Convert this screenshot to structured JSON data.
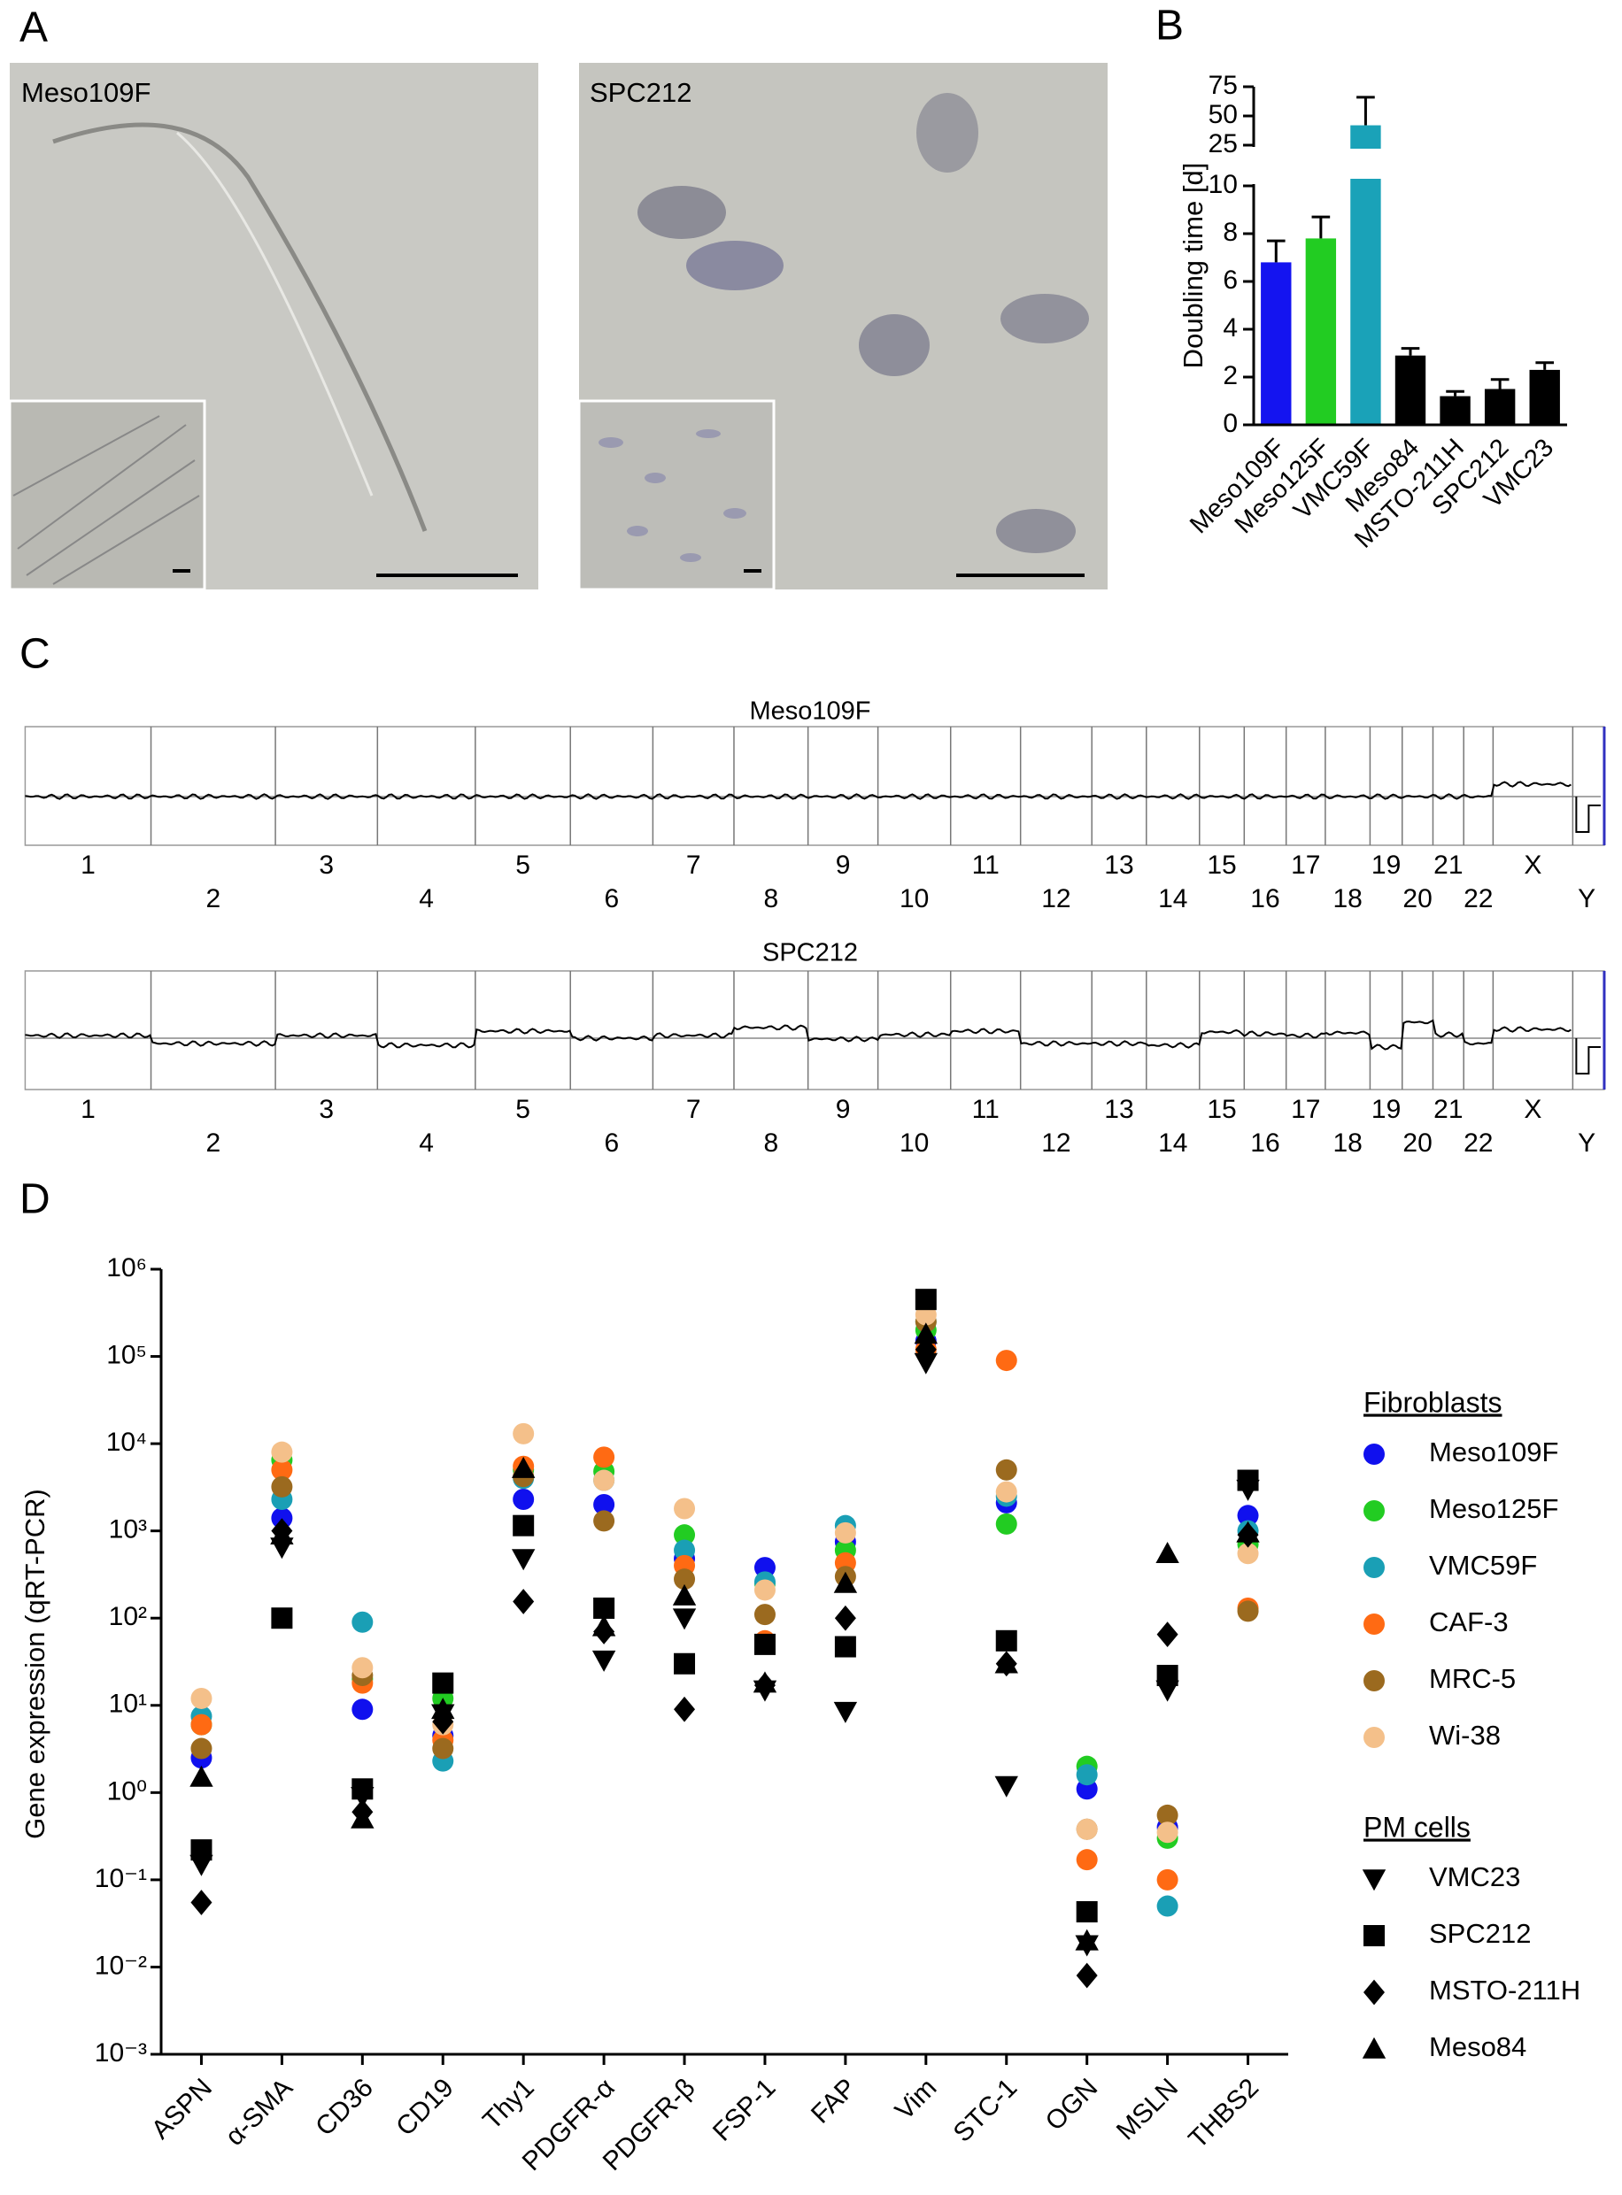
{
  "panel_labels": [
    "A",
    "B",
    "C",
    "D"
  ],
  "images": [
    {
      "label": "Meso109F"
    },
    {
      "label": "SPC212"
    }
  ],
  "chart_data": [
    {
      "type": "bar",
      "ylabel": "Doubling time [d]",
      "categories": [
        "Meso109F",
        "Meso125F",
        "VMC59F",
        "Meso84",
        "MSTO-211H",
        "SPC212",
        "VMC23"
      ],
      "values": [
        6.8,
        7.8,
        42,
        2.9,
        1.2,
        1.5,
        2.3
      ],
      "errors": [
        0.9,
        0.9,
        24,
        0.3,
        0.2,
        0.4,
        0.3
      ],
      "colors": [
        "#1414f0",
        "#22cc22",
        "#1aa2b8",
        "#000000",
        "#000000",
        "#000000",
        "#000000"
      ],
      "ylim": [
        0,
        75
      ],
      "ybreak": [
        10,
        25
      ],
      "yticks": [
        0,
        2,
        4,
        6,
        8,
        10,
        25,
        50,
        75
      ]
    },
    {
      "type": "cnv",
      "title": "Meso109F",
      "categories": [
        "1",
        "2",
        "3",
        "4",
        "5",
        "6",
        "7",
        "8",
        "9",
        "10",
        "11",
        "12",
        "13",
        "14",
        "15",
        "16",
        "17",
        "18",
        "19",
        "20",
        "21",
        "22",
        "X",
        "Y"
      ]
    },
    {
      "type": "cnv",
      "title": "SPC212",
      "categories": [
        "1",
        "2",
        "3",
        "4",
        "5",
        "6",
        "7",
        "8",
        "9",
        "10",
        "11",
        "12",
        "13",
        "14",
        "15",
        "16",
        "17",
        "18",
        "19",
        "20",
        "21",
        "22",
        "X",
        "Y"
      ]
    },
    {
      "type": "scatter",
      "ylabel": "Gene expression (qRT-PCR)",
      "log_y": true,
      "categories": [
        "ASPN",
        "α-SMA",
        "CD36",
        "CD19",
        "Thy1",
        "PDGFR-α",
        "PDGFR-β",
        "FSP-1",
        "FAP",
        "Vim",
        "STC-1",
        "OGN",
        "MSLN",
        "THBS2"
      ],
      "ylim": [
        0.001,
        1000000
      ],
      "yticks": [
        {
          "value": 1000000,
          "label": "10⁶"
        },
        {
          "value": 100000,
          "label": "10⁵"
        },
        {
          "value": 10000,
          "label": "10⁴"
        },
        {
          "value": 1000,
          "label": "10³"
        },
        {
          "value": 100,
          "label": "10²"
        },
        {
          "value": 10,
          "label": "10¹"
        },
        {
          "value": 1,
          "label": "10⁰"
        },
        {
          "value": 0.1,
          "label": "10⁻¹"
        },
        {
          "value": 0.01,
          "label": "10⁻²"
        },
        {
          "value": 0.001,
          "label": "10⁻³"
        }
      ],
      "series": [
        {
          "name": "Meso109F",
          "group": "Fibroblasts",
          "marker": "circle",
          "color": "#1010ee",
          "values": [
            2.5,
            1400,
            9,
            4.5,
            2300,
            2000,
            480,
            380,
            750,
            150000,
            2100,
            1.1,
            0.4,
            1500
          ]
        },
        {
          "name": "Meso125F",
          "group": "Fibroblasts",
          "marker": "circle",
          "color": "#22cc22",
          "values": [
            6,
            6500,
            20,
            12,
            5000,
            4800,
            900,
            250,
            600,
            200000,
            1200,
            2,
            0.3,
            700
          ]
        },
        {
          "name": "VMC59F",
          "group": "Fibroblasts",
          "marker": "circle",
          "color": "#1a9fb5",
          "values": [
            7.5,
            2300,
            90,
            2.3,
            4000,
            3800,
            600,
            260,
            1150,
            250000,
            2500,
            1.6,
            0.05,
            1000
          ]
        },
        {
          "name": "CAF-3",
          "group": "Fibroblasts",
          "marker": "circle",
          "color": "#ff6a13",
          "values": [
            6,
            5000,
            18,
            4,
            5500,
            7000,
            400,
            55,
            430,
            120000,
            90000,
            0.17,
            0.1,
            130
          ]
        },
        {
          "name": "MRC-5",
          "group": "Fibroblasts",
          "marker": "circle",
          "color": "#9b6a1f",
          "values": [
            3.2,
            3200,
            22,
            3.2,
            4200,
            1300,
            280,
            110,
            300,
            250000,
            5000,
            0.38,
            0.55,
            120
          ]
        },
        {
          "name": "Wi-38",
          "group": "Fibroblasts",
          "marker": "circle",
          "color": "#f4c08a",
          "values": [
            12,
            8000,
            27,
            6,
            13000,
            3800,
            1800,
            210,
            950,
            300000,
            2800,
            0.38,
            0.35,
            550
          ]
        },
        {
          "name": "VMC23",
          "group": "PM cells",
          "marker": "triangle-down",
          "color": "#000000",
          "values": [
            0.15,
            650,
            0.9,
            8,
            480,
            33,
            100,
            15,
            8.5,
            85000,
            1.2,
            0.018,
            15,
            3000
          ]
        },
        {
          "name": "SPC212",
          "group": "PM cells",
          "marker": "square",
          "color": "#000000",
          "values": [
            0.22,
            100,
            1.1,
            18,
            1150,
            130,
            30,
            50,
            47,
            450000,
            55,
            0.043,
            22,
            3800
          ]
        },
        {
          "name": "MSTO-211H",
          "group": "PM cells",
          "marker": "diamond",
          "color": "#000000",
          "values": [
            0.055,
            1000,
            0.6,
            6.5,
            155,
            70,
            9,
            17,
            100,
            120000,
            30,
            0.008,
            65,
            900
          ]
        },
        {
          "name": "Meso84",
          "group": "PM cells",
          "marker": "triangle",
          "color": "#000000",
          "values": [
            1.5,
            900,
            0.5,
            9,
            5200,
            80,
            180,
            18,
            250,
            180000,
            30,
            0.02,
            550,
            950
          ]
        }
      ]
    }
  ]
}
